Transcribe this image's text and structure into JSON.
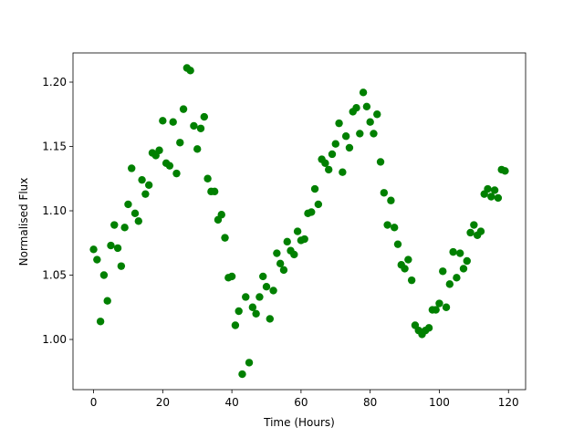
{
  "chart_data": {
    "type": "scatter",
    "x_label": "Time (Hours)",
    "y_label": "Normalised Flux",
    "color": "#008000",
    "xlim": [
      -5.95,
      124.95
    ],
    "ylim": [
      0.961,
      1.2227
    ],
    "xticks": [
      0,
      20,
      40,
      60,
      80,
      100,
      120
    ],
    "yticks": [
      {
        "value": 1.0,
        "label": "1.00"
      },
      {
        "value": 1.05,
        "label": "1.05"
      },
      {
        "value": 1.1,
        "label": "1.10"
      },
      {
        "value": 1.15,
        "label": "1.15"
      },
      {
        "value": 1.2,
        "label": "1.20"
      }
    ],
    "x": [
      0,
      1,
      2,
      3,
      4,
      5,
      6,
      7,
      8,
      9,
      10,
      11,
      12,
      13,
      14,
      15,
      16,
      17,
      18,
      19,
      20,
      21,
      22,
      23,
      24,
      25,
      26,
      27,
      28,
      29,
      30,
      31,
      32,
      33,
      34,
      35,
      36,
      37,
      38,
      39,
      40,
      41,
      42,
      43,
      44,
      45,
      46,
      47,
      48,
      49,
      50,
      51,
      52,
      53,
      54,
      55,
      56,
      57,
      58,
      59,
      60,
      61,
      62,
      63,
      64,
      65,
      66,
      67,
      68,
      69,
      70,
      71,
      72,
      73,
      74,
      75,
      76,
      77,
      78,
      79,
      80,
      81,
      82,
      83,
      84,
      85,
      86,
      87,
      88,
      89,
      90,
      91,
      92,
      93,
      94,
      95,
      96,
      97,
      98,
      99,
      100,
      101,
      102,
      103,
      104,
      105,
      106,
      107,
      108,
      109,
      110,
      111,
      112,
      113,
      114,
      115,
      116,
      117,
      118,
      119
    ],
    "values": [
      1.07,
      1.062,
      1.014,
      1.05,
      1.03,
      1.073,
      1.089,
      1.071,
      1.057,
      1.087,
      1.105,
      1.133,
      1.098,
      1.092,
      1.124,
      1.113,
      1.12,
      1.145,
      1.143,
      1.147,
      1.17,
      1.137,
      1.135,
      1.169,
      1.129,
      1.153,
      1.179,
      1.211,
      1.209,
      1.166,
      1.148,
      1.164,
      1.173,
      1.125,
      1.115,
      1.115,
      1.093,
      1.097,
      1.079,
      1.048,
      1.049,
      1.011,
      1.022,
      0.973,
      1.033,
      0.982,
      1.025,
      1.02,
      1.033,
      1.049,
      1.041,
      1.016,
      1.038,
      1.067,
      1.059,
      1.054,
      1.076,
      1.069,
      1.066,
      1.084,
      1.077,
      1.078,
      1.098,
      1.099,
      1.117,
      1.105,
      1.14,
      1.137,
      1.132,
      1.144,
      1.152,
      1.168,
      1.13,
      1.158,
      1.149,
      1.177,
      1.18,
      1.16,
      1.192,
      1.181,
      1.169,
      1.16,
      1.175,
      1.138,
      1.114,
      1.089,
      1.108,
      1.087,
      1.074,
      1.058,
      1.055,
      1.062,
      1.046,
      1.011,
      1.007,
      1.004,
      1.007,
      1.009,
      1.023,
      1.023,
      1.028,
      1.053,
      1.025,
      1.043,
      1.068,
      1.048,
      1.067,
      1.055,
      1.061,
      1.083,
      1.089,
      1.081,
      1.084,
      1.113,
      1.117,
      1.111,
      1.116,
      1.11,
      1.132,
      1.131
    ]
  }
}
